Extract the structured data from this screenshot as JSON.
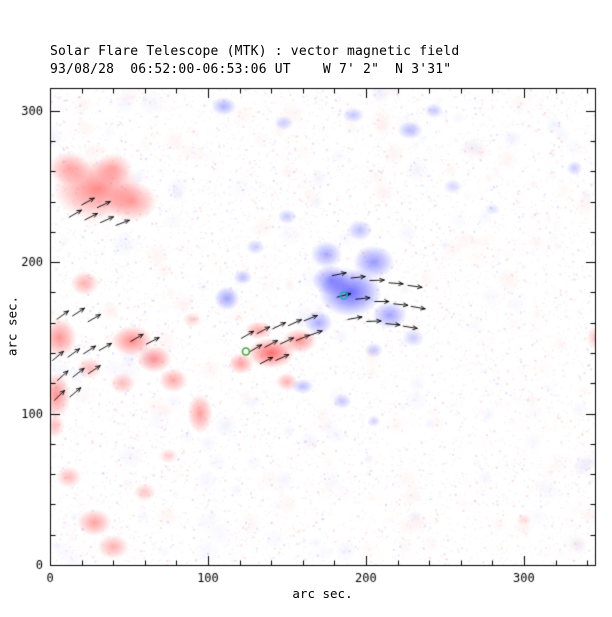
{
  "chart_data": {
    "type": "heatmap",
    "title": "Solar Flare Telescope (MTK) : vector magnetic field",
    "subtitle": "93/08/28  06:52:00-06:53:06 UT    W 7' 2\"  N 3'31\"",
    "xlabel": "arc sec.",
    "ylabel": "arc sec.",
    "x_range": [
      0,
      345
    ],
    "y_range": [
      0,
      315
    ],
    "xticks": [
      0,
      100,
      200,
      300
    ],
    "yticks": [
      0,
      100,
      200,
      300
    ],
    "minor_tick_step": 20,
    "polarity_colors": {
      "negative": "#ff3c3c",
      "positive": "#4646ff"
    },
    "grid": false,
    "legend": "none",
    "red_regions": [
      [
        30,
        248,
        28,
        20,
        0.6
      ],
      [
        52,
        240,
        16,
        13,
        0.5
      ],
      [
        12,
        262,
        13,
        11,
        0.45
      ],
      [
        40,
        262,
        12,
        10,
        0.4
      ],
      [
        22,
        186,
        9,
        8,
        0.4
      ],
      [
        6,
        150,
        11,
        13,
        0.55
      ],
      [
        4,
        112,
        9,
        15,
        0.55
      ],
      [
        25,
        130,
        8,
        7,
        0.35
      ],
      [
        52,
        148,
        13,
        10,
        0.6
      ],
      [
        66,
        136,
        11,
        9,
        0.55
      ],
      [
        78,
        122,
        9,
        8,
        0.45
      ],
      [
        46,
        120,
        8,
        7,
        0.35
      ],
      [
        95,
        100,
        8,
        13,
        0.5
      ],
      [
        140,
        140,
        15,
        10,
        0.75
      ],
      [
        158,
        148,
        11,
        8,
        0.55
      ],
      [
        150,
        121,
        7,
        6,
        0.4
      ],
      [
        121,
        133,
        8,
        7,
        0.5
      ],
      [
        132,
        155,
        9,
        6,
        0.45
      ],
      [
        28,
        28,
        11,
        9,
        0.45
      ],
      [
        40,
        12,
        10,
        8,
        0.4
      ],
      [
        12,
        58,
        8,
        7,
        0.35
      ],
      [
        60,
        48,
        7,
        6,
        0.3
      ],
      [
        75,
        72,
        6,
        5,
        0.25
      ],
      [
        3,
        92,
        6,
        8,
        0.35
      ],
      [
        90,
        162,
        6,
        5,
        0.25
      ],
      [
        345,
        150,
        5,
        8,
        0.3
      ],
      [
        300,
        30,
        5,
        4,
        0.18
      ]
    ],
    "blue_regions": [
      [
        190,
        180,
        20,
        16,
        0.8
      ],
      [
        178,
        188,
        12,
        10,
        0.6
      ],
      [
        205,
        200,
        13,
        11,
        0.55
      ],
      [
        175,
        205,
        10,
        9,
        0.45
      ],
      [
        215,
        165,
        11,
        9,
        0.5
      ],
      [
        170,
        160,
        9,
        8,
        0.45
      ],
      [
        196,
        221,
        8,
        7,
        0.35
      ],
      [
        112,
        176,
        8,
        8,
        0.5
      ],
      [
        122,
        190,
        6,
        5,
        0.35
      ],
      [
        150,
        230,
        6,
        5,
        0.3
      ],
      [
        160,
        118,
        7,
        5,
        0.35
      ],
      [
        185,
        108,
        6,
        5,
        0.3
      ],
      [
        205,
        95,
        4,
        4,
        0.25
      ],
      [
        110,
        303,
        8,
        6,
        0.4
      ],
      [
        148,
        292,
        6,
        5,
        0.28
      ],
      [
        192,
        297,
        7,
        5,
        0.32
      ],
      [
        228,
        287,
        8,
        6,
        0.35
      ],
      [
        243,
        300,
        6,
        5,
        0.3
      ],
      [
        255,
        250,
        6,
        5,
        0.22
      ],
      [
        280,
        235,
        5,
        4,
        0.18
      ],
      [
        332,
        262,
        5,
        5,
        0.28
      ],
      [
        130,
        210,
        6,
        5,
        0.28
      ],
      [
        230,
        150,
        7,
        6,
        0.28
      ],
      [
        205,
        142,
        6,
        5,
        0.28
      ]
    ],
    "vector_arrows": [
      [
        183,
        192,
        12
      ],
      [
        195,
        190,
        6
      ],
      [
        207,
        188,
        2
      ],
      [
        219,
        186,
        -4
      ],
      [
        231,
        184,
        -8
      ],
      [
        186,
        178,
        14
      ],
      [
        198,
        176,
        6
      ],
      [
        210,
        174,
        0
      ],
      [
        222,
        172,
        -6
      ],
      [
        233,
        170,
        -10
      ],
      [
        193,
        163,
        10
      ],
      [
        205,
        161,
        2
      ],
      [
        217,
        159,
        -5
      ],
      [
        228,
        157,
        -9
      ],
      [
        125,
        152,
        30
      ],
      [
        135,
        155,
        28
      ],
      [
        145,
        158,
        26
      ],
      [
        155,
        160,
        24
      ],
      [
        165,
        163,
        22
      ],
      [
        130,
        143,
        30
      ],
      [
        140,
        146,
        28
      ],
      [
        150,
        148,
        25
      ],
      [
        160,
        150,
        22
      ],
      [
        168,
        153,
        20
      ],
      [
        137,
        135,
        27
      ],
      [
        147,
        137,
        24
      ],
      [
        5,
        138,
        40
      ],
      [
        15,
        140,
        36
      ],
      [
        25,
        142,
        33
      ],
      [
        35,
        144,
        30
      ],
      [
        8,
        125,
        42
      ],
      [
        18,
        127,
        38
      ],
      [
        28,
        129,
        34
      ],
      [
        6,
        112,
        44
      ],
      [
        16,
        114,
        40
      ],
      [
        8,
        165,
        36
      ],
      [
        18,
        167,
        33
      ],
      [
        28,
        163,
        30
      ],
      [
        55,
        150,
        30
      ],
      [
        65,
        148,
        27
      ],
      [
        16,
        232,
        30
      ],
      [
        26,
        230,
        27
      ],
      [
        36,
        228,
        24
      ],
      [
        46,
        226,
        21
      ],
      [
        24,
        240,
        29
      ],
      [
        34,
        238,
        25
      ]
    ],
    "markers": [
      {
        "x": 124,
        "y": 141,
        "color": "#44aa33"
      },
      {
        "x": 186,
        "y": 178,
        "color": "#18b0a0"
      }
    ],
    "noise": {
      "seed": 12345,
      "speckle_count": 9000,
      "patch_count": 260
    }
  }
}
